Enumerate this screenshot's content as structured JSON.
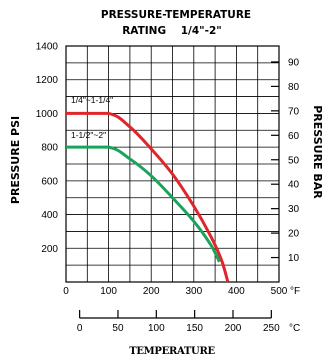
{
  "chart_data": {
    "type": "line",
    "title_line1": "PRESSURE-TEMPERATURE",
    "title_line2": "RATING    1/4\"-2\"",
    "ylabel": "PRESSURE PSI",
    "y2label": "PRESSURE BAR",
    "xlabel": "TEMPERATURE",
    "x_unit": "°F",
    "x2_unit": "°C",
    "xlim": [
      0,
      500
    ],
    "ylim": [
      0,
      1400
    ],
    "x_ticks": [
      "0",
      "100",
      "200",
      "300",
      "400",
      "500"
    ],
    "y_ticks": [
      "200",
      "400",
      "600",
      "800",
      "1000",
      "1200",
      "1400"
    ],
    "y2_ticks": [
      10,
      20,
      30,
      40,
      50,
      60,
      70,
      80,
      90
    ],
    "x2_ticks": [
      0,
      50,
      100,
      150,
      200,
      250
    ],
    "x2_labels": [
      "0",
      "50",
      "100",
      "150",
      "200",
      "250"
    ],
    "grid": true,
    "series": [
      {
        "name": "1/4\"~1-1/4\"",
        "color": "#e0252b",
        "points": [
          [
            0,
            1000
          ],
          [
            100,
            1000
          ],
          [
            150,
            920
          ],
          [
            200,
            790
          ],
          [
            250,
            640
          ],
          [
            300,
            450
          ],
          [
            340,
            270
          ],
          [
            365,
            130
          ],
          [
            380,
            0
          ]
        ]
      },
      {
        "name": "1-1/2\"~2\"",
        "color": "#1aa35a",
        "points": [
          [
            0,
            800
          ],
          [
            100,
            800
          ],
          [
            150,
            730
          ],
          [
            200,
            630
          ],
          [
            250,
            500
          ],
          [
            300,
            360
          ],
          [
            340,
            220
          ],
          [
            360,
            120
          ]
        ]
      }
    ]
  }
}
